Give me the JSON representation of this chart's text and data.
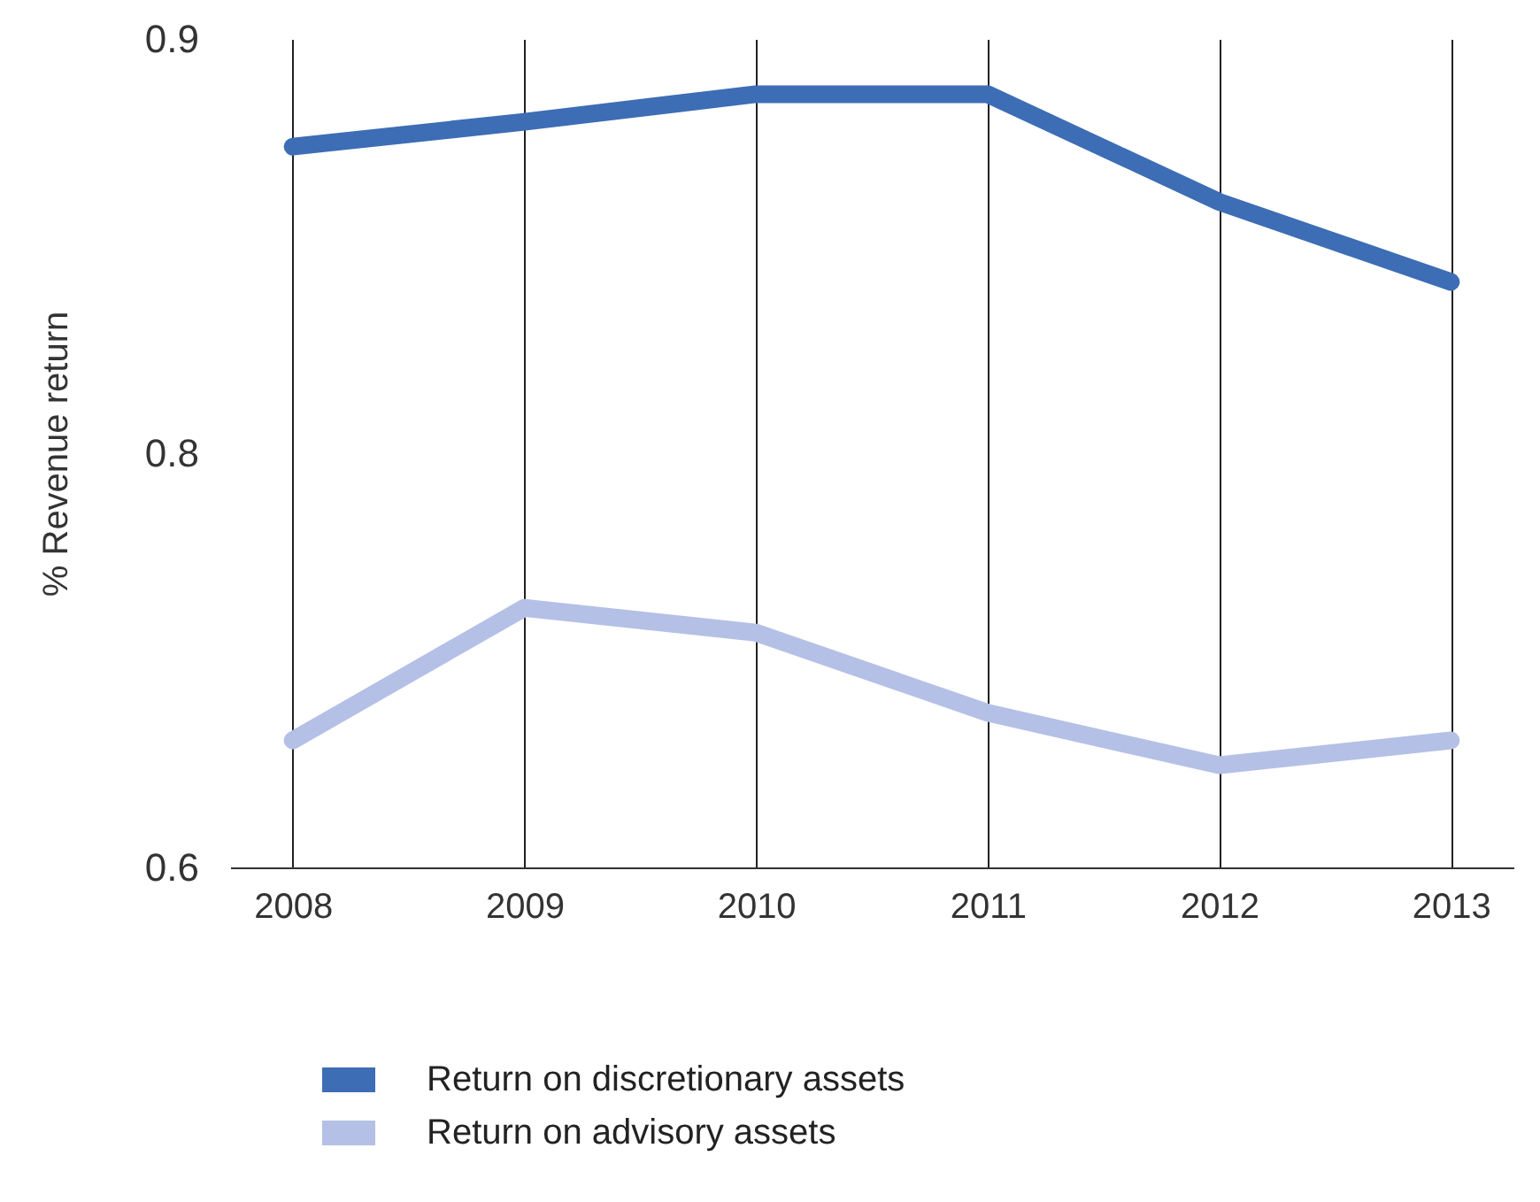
{
  "chart_data": {
    "type": "line",
    "ylabel": "% Revenue return",
    "categories": [
      "2008",
      "2009",
      "2010",
      "2011",
      "2012",
      "2013"
    ],
    "series": [
      {
        "name": "Return on discretionary assets",
        "color": "#3d6db5",
        "values": [
          0.861,
          0.87,
          0.88,
          0.88,
          0.841,
          0.812
        ]
      },
      {
        "name": "Return on advisory assets",
        "color": "#b5c0e6",
        "values": [
          0.646,
          0.694,
          0.685,
          0.656,
          0.637,
          0.646
        ]
      }
    ],
    "ylim": [
      0.6,
      0.9
    ],
    "yticks": [
      0.6,
      {
        "value": 0.75,
        "label": "0.8"
      },
      0.9
    ],
    "grid": "x",
    "legend": "bottom left",
    "marker": "none",
    "line_style": "solid"
  }
}
